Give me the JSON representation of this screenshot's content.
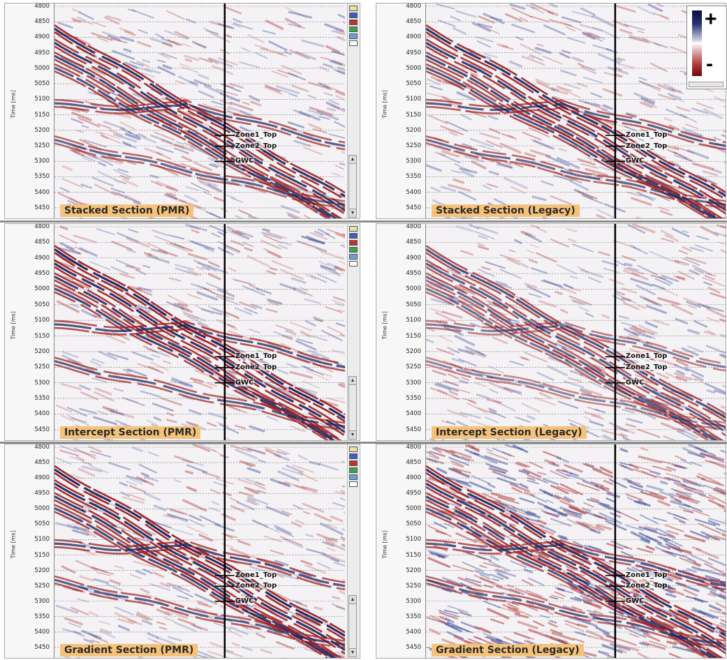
{
  "axis_title": "Time [ms]",
  "time_ticks": [
    "4800",
    "4850",
    "4900",
    "4950",
    "5000",
    "5050",
    "5100",
    "5150",
    "5200",
    "5250",
    "5300",
    "5350",
    "5400",
    "5450"
  ],
  "well_tops": [
    "Zone1_Top",
    "Zone2_Top",
    "GWC"
  ],
  "panels": [
    {
      "label": "Stacked Section (PMR)"
    },
    {
      "label": "Stacked Section (Legacy)"
    },
    {
      "label": "Intercept Section (PMR)"
    },
    {
      "label": "Intercept Section (Legacy)"
    },
    {
      "label": "Gradient Section (PMR)"
    },
    {
      "label": "Gradient Section (Legacy)"
    }
  ],
  "legend": {
    "plus": "+",
    "minus": "-"
  },
  "colors": {
    "positive": "#1e2a6e",
    "negative": "#8e1414",
    "label_bg": "#f5c27a"
  }
}
